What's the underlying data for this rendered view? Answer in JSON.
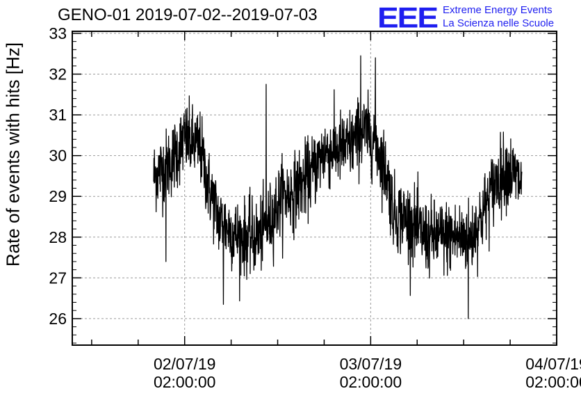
{
  "header": {
    "title": "GENO-01 2019-07-02--2019-07-03",
    "logo_text": "EEE",
    "logo_line1": "Extreme Energy Events",
    "logo_line2": "La Scienza nelle Scuole",
    "logo_color": "#1e1ef0"
  },
  "chart_data": {
    "type": "line",
    "title": "GENO-01 2019-07-02--2019-07-03",
    "xlabel": "",
    "ylabel": "Rate of events with hits [Hz]",
    "ylim": [
      25.35,
      33.05
    ],
    "y_ticks": [
      "26",
      "27",
      "28",
      "29",
      "30",
      "31",
      "32",
      "33"
    ],
    "x_axis": {
      "range_hours": [
        -14.5,
        48
      ],
      "labeled_ticks": [
        {
          "hour": 0,
          "date": "02/07/19",
          "time": "02:00:00"
        },
        {
          "hour": 24,
          "date": "03/07/19",
          "time": "02:00:00"
        },
        {
          "hour": 48,
          "date": "04/07/19",
          "time": "02:00:00"
        }
      ]
    },
    "grid": true,
    "series": [
      {
        "color": "#000000",
        "x_start_hour": -4,
        "x_end_hour": 43.5,
        "trend_points": [
          {
            "hour": -4.0,
            "value": 29.5
          },
          {
            "hour": -2.0,
            "value": 29.8
          },
          {
            "hour": 0.0,
            "value": 30.4
          },
          {
            "hour": 2.0,
            "value": 30.2
          },
          {
            "hour": 3.0,
            "value": 29.3
          },
          {
            "hour": 4.5,
            "value": 28.4
          },
          {
            "hour": 7.0,
            "value": 28.0
          },
          {
            "hour": 9.5,
            "value": 28.0
          },
          {
            "hour": 11.0,
            "value": 28.4
          },
          {
            "hour": 12.5,
            "value": 29.0
          },
          {
            "hour": 14.0,
            "value": 29.1
          },
          {
            "hour": 16.5,
            "value": 29.6
          },
          {
            "hour": 18.0,
            "value": 30.1
          },
          {
            "hour": 21.0,
            "value": 30.2
          },
          {
            "hour": 23.0,
            "value": 30.6
          },
          {
            "hour": 24.5,
            "value": 30.4
          },
          {
            "hour": 26.0,
            "value": 29.6
          },
          {
            "hour": 27.0,
            "value": 28.6
          },
          {
            "hour": 29.0,
            "value": 28.4
          },
          {
            "hour": 31.0,
            "value": 28.0
          },
          {
            "hour": 33.0,
            "value": 28.0
          },
          {
            "hour": 35.0,
            "value": 28.0
          },
          {
            "hour": 37.0,
            "value": 28.0
          },
          {
            "hour": 38.5,
            "value": 28.6
          },
          {
            "hour": 40.0,
            "value": 29.3
          },
          {
            "hour": 41.5,
            "value": 29.7
          },
          {
            "hour": 43.5,
            "value": 29.3
          }
        ],
        "noise_sd": 0.45,
        "spikes": [
          {
            "hour": 10.5,
            "value": 31.75
          },
          {
            "hour": 22.7,
            "value": 32.45
          },
          {
            "hour": 24.6,
            "value": 32.4
          },
          {
            "hour": 36.6,
            "value": 26.0
          },
          {
            "hour": 5.0,
            "value": 26.35
          },
          {
            "hour": -2.4,
            "value": 27.4
          }
        ]
      }
    ]
  }
}
